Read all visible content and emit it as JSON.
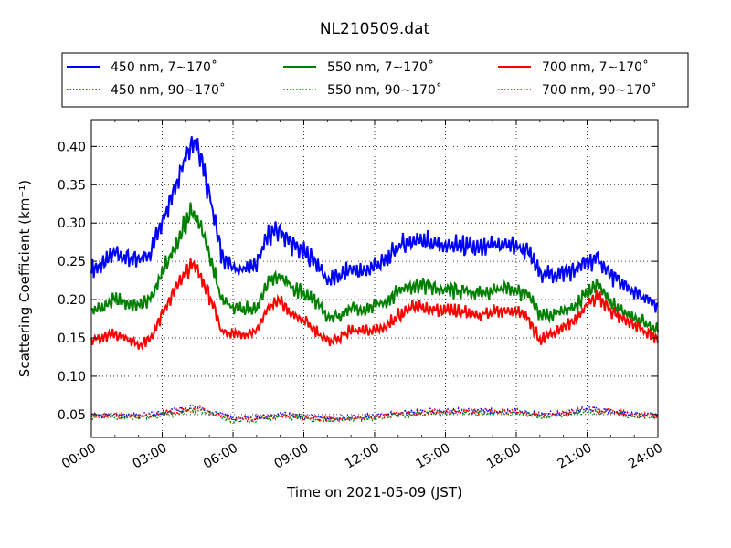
{
  "chart_data": {
    "type": "line",
    "title": "NL210509.dat",
    "xlabel": "Time on 2021-05-09 (JST)",
    "ylabel": "Scattering Coefficient (km⁻¹)",
    "xlim": [
      0,
      24
    ],
    "ylim": [
      0.02,
      0.435
    ],
    "x_ticks": [
      {
        "hour": 0,
        "label": "00:00"
      },
      {
        "hour": 3,
        "label": "03:00"
      },
      {
        "hour": 6,
        "label": "06:00"
      },
      {
        "hour": 9,
        "label": "09:00"
      },
      {
        "hour": 12,
        "label": "12:00"
      },
      {
        "hour": 15,
        "label": "15:00"
      },
      {
        "hour": 18,
        "label": "18:00"
      },
      {
        "hour": 21,
        "label": "21:00"
      },
      {
        "hour": 24,
        "label": "24:00"
      }
    ],
    "y_ticks": [
      {
        "value": 0.05,
        "label": "0.05"
      },
      {
        "value": 0.1,
        "label": "0.10"
      },
      {
        "value": 0.15,
        "label": "0.15"
      },
      {
        "value": 0.2,
        "label": "0.20"
      },
      {
        "value": 0.25,
        "label": "0.25"
      },
      {
        "value": 0.3,
        "label": "0.30"
      },
      {
        "value": 0.35,
        "label": "0.35"
      },
      {
        "value": 0.4,
        "label": "0.40"
      }
    ],
    "grid": true,
    "legend_position": "top-center",
    "series": [
      {
        "name": "450 nm, 7∼170˚",
        "color": "#0000ff",
        "style": "solid",
        "x": [
          0,
          0.5,
          1,
          1.5,
          2,
          2.5,
          3,
          3.5,
          4,
          4.25,
          4.5,
          5,
          5.5,
          6,
          6.5,
          7,
          7.5,
          8,
          8.5,
          9,
          9.5,
          10,
          10.5,
          11,
          11.5,
          12,
          12.5,
          13,
          13.5,
          14,
          14.5,
          15,
          15.5,
          16,
          16.5,
          17,
          17.5,
          18,
          18.5,
          19,
          19.5,
          20,
          20.5,
          21,
          21.5,
          22,
          22.5,
          23,
          23.5,
          24
        ],
        "y": [
          0.24,
          0.245,
          0.262,
          0.255,
          0.25,
          0.262,
          0.305,
          0.345,
          0.39,
          0.408,
          0.398,
          0.34,
          0.26,
          0.24,
          0.24,
          0.245,
          0.285,
          0.29,
          0.272,
          0.262,
          0.25,
          0.225,
          0.23,
          0.24,
          0.235,
          0.245,
          0.25,
          0.27,
          0.275,
          0.28,
          0.272,
          0.27,
          0.27,
          0.268,
          0.265,
          0.27,
          0.272,
          0.27,
          0.262,
          0.235,
          0.232,
          0.235,
          0.238,
          0.25,
          0.252,
          0.232,
          0.22,
          0.21,
          0.2,
          0.19
        ]
      },
      {
        "name": "550 nm, 7∼170˚",
        "color": "#008000",
        "style": "solid",
        "x": [
          0,
          0.5,
          1,
          1.5,
          2,
          2.5,
          3,
          3.5,
          4,
          4.25,
          4.5,
          5,
          5.5,
          6,
          6.5,
          7,
          7.5,
          8,
          8.5,
          9,
          9.5,
          10,
          10.5,
          11,
          11.5,
          12,
          12.5,
          13,
          13.5,
          14,
          14.5,
          15,
          15.5,
          16,
          16.5,
          17,
          17.5,
          18,
          18.5,
          19,
          19.5,
          20,
          20.5,
          21,
          21.5,
          22,
          22.5,
          23,
          23.5,
          24
        ],
        "y": [
          0.185,
          0.19,
          0.2,
          0.195,
          0.192,
          0.2,
          0.235,
          0.265,
          0.3,
          0.315,
          0.305,
          0.26,
          0.2,
          0.188,
          0.188,
          0.19,
          0.225,
          0.232,
          0.215,
          0.208,
          0.198,
          0.175,
          0.18,
          0.188,
          0.185,
          0.192,
          0.198,
          0.212,
          0.218,
          0.22,
          0.215,
          0.212,
          0.212,
          0.21,
          0.208,
          0.212,
          0.215,
          0.212,
          0.205,
          0.18,
          0.18,
          0.185,
          0.19,
          0.21,
          0.218,
          0.195,
          0.185,
          0.178,
          0.168,
          0.16
        ]
      },
      {
        "name": "700 nm, 7∼170˚",
        "color": "#ff0000",
        "style": "solid",
        "x": [
          0,
          0.5,
          1,
          1.5,
          2,
          2.5,
          3,
          3.5,
          4,
          4.25,
          4.5,
          5,
          5.5,
          6,
          6.5,
          7,
          7.5,
          8,
          8.5,
          9,
          9.5,
          10,
          10.5,
          11,
          11.5,
          12,
          12.5,
          13,
          13.5,
          14,
          14.5,
          15,
          15.5,
          16,
          16.5,
          17,
          17.5,
          18,
          18.5,
          19,
          19.5,
          20,
          20.5,
          21,
          21.5,
          22,
          22.5,
          23,
          23.5,
          24
        ],
        "y": [
          0.148,
          0.15,
          0.155,
          0.15,
          0.14,
          0.148,
          0.18,
          0.21,
          0.235,
          0.245,
          0.238,
          0.205,
          0.16,
          0.155,
          0.155,
          0.16,
          0.19,
          0.198,
          0.18,
          0.172,
          0.16,
          0.145,
          0.15,
          0.16,
          0.158,
          0.16,
          0.165,
          0.18,
          0.188,
          0.19,
          0.186,
          0.184,
          0.184,
          0.182,
          0.18,
          0.184,
          0.186,
          0.184,
          0.175,
          0.148,
          0.155,
          0.165,
          0.172,
          0.195,
          0.205,
          0.185,
          0.175,
          0.168,
          0.158,
          0.148
        ]
      },
      {
        "name": "450 nm, 90∼170˚",
        "color": "#0000ff",
        "style": "dotted",
        "x": [
          0,
          1,
          2,
          3,
          4,
          4.5,
          5,
          5.5,
          6,
          7,
          8,
          9,
          10,
          11,
          12,
          13,
          14,
          15,
          16,
          17,
          18,
          19,
          20,
          21,
          22,
          23,
          24
        ],
        "y": [
          0.049,
          0.05,
          0.048,
          0.052,
          0.058,
          0.06,
          0.056,
          0.05,
          0.046,
          0.046,
          0.05,
          0.048,
          0.045,
          0.046,
          0.048,
          0.052,
          0.054,
          0.055,
          0.055,
          0.055,
          0.055,
          0.05,
          0.052,
          0.058,
          0.055,
          0.05,
          0.05
        ]
      },
      {
        "name": "550 nm, 90∼170˚",
        "color": "#008000",
        "style": "dotted",
        "x": [
          0,
          1,
          2,
          3,
          4,
          4.5,
          5,
          5.5,
          6,
          7,
          8,
          9,
          10,
          11,
          12,
          13,
          14,
          15,
          16,
          17,
          18,
          19,
          20,
          21,
          22,
          23,
          24
        ],
        "y": [
          0.047,
          0.047,
          0.045,
          0.049,
          0.054,
          0.056,
          0.052,
          0.046,
          0.042,
          0.043,
          0.047,
          0.045,
          0.042,
          0.043,
          0.045,
          0.049,
          0.051,
          0.052,
          0.052,
          0.052,
          0.052,
          0.047,
          0.049,
          0.055,
          0.052,
          0.047,
          0.047
        ]
      },
      {
        "name": "700 nm, 90∼170˚",
        "color": "#ff0000",
        "style": "dotted",
        "x": [
          0,
          1,
          2,
          3,
          4,
          4.5,
          5,
          5.5,
          6,
          7,
          8,
          9,
          10,
          11,
          12,
          13,
          14,
          15,
          16,
          17,
          18,
          19,
          20,
          21,
          22,
          23,
          24
        ],
        "y": [
          0.048,
          0.049,
          0.047,
          0.051,
          0.055,
          0.057,
          0.054,
          0.048,
          0.044,
          0.045,
          0.049,
          0.047,
          0.044,
          0.045,
          0.047,
          0.051,
          0.053,
          0.054,
          0.054,
          0.054,
          0.054,
          0.049,
          0.051,
          0.057,
          0.054,
          0.049,
          0.049
        ]
      }
    ]
  }
}
